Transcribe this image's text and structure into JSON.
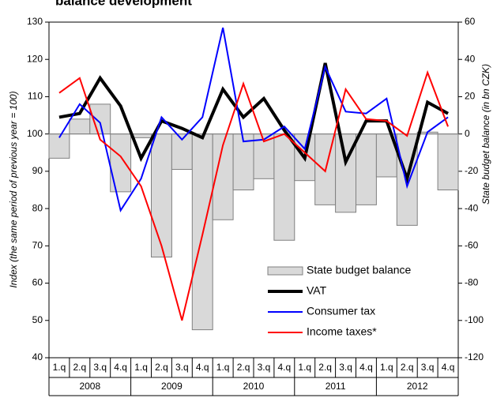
{
  "chart_data": {
    "type": "combo",
    "title": "balance development",
    "y_label": "Index (the same period of previous year = 100)",
    "y2_label": "State budget balance (in bn CZK)",
    "categories": [
      "1.q",
      "2.q",
      "3.q",
      "4.q",
      "1.q",
      "2.q",
      "3.q",
      "4.q",
      "1.q",
      "2.q",
      "3.q",
      "4.q",
      "1.q",
      "2.q",
      "3.q",
      "4.q",
      "1.q",
      "2.q",
      "3.q",
      "4.q"
    ],
    "years": [
      "2008",
      "2009",
      "2010",
      "2011",
      "2012"
    ],
    "ylim": [
      40,
      130
    ],
    "yticks": [
      40,
      50,
      60,
      70,
      80,
      90,
      100,
      110,
      120,
      130
    ],
    "y2lim": [
      -120,
      60
    ],
    "y2ticks": [
      -120,
      -100,
      -80,
      -60,
      -40,
      -20,
      0,
      20,
      40,
      60
    ],
    "series": [
      {
        "name": "State budget balance",
        "type": "bar",
        "axis": "y2",
        "color": "#d9d9d9",
        "values": [
          -13,
          8,
          16,
          -31,
          -2,
          -66,
          -19,
          -105,
          -46,
          -30,
          -24,
          -57,
          -25,
          -38,
          -42,
          -38,
          -23,
          -49,
          1,
          -30
        ]
      },
      {
        "name": "VAT",
        "type": "line",
        "color": "#000000",
        "values": [
          104.5,
          105.5,
          115,
          107.5,
          93.5,
          103.5,
          101.5,
          99,
          112,
          104.5,
          109.5,
          101,
          93.5,
          119,
          92.5,
          103.5,
          103.5,
          88,
          108.5,
          105.5
        ]
      },
      {
        "name": "Consumer tax",
        "type": "line",
        "color": "#0000ff",
        "values": [
          99,
          108,
          103,
          79.5,
          88,
          104.5,
          98.5,
          104.5,
          128.5,
          98,
          98.5,
          102,
          96,
          118,
          106,
          105.5,
          109.5,
          86,
          100.5,
          104.5
        ]
      },
      {
        "name": "Income taxes*",
        "type": "line",
        "color": "#ff0000",
        "values": [
          111,
          115,
          98.5,
          94,
          86,
          70,
          50,
          73,
          97,
          113.5,
          98,
          100,
          95,
          90,
          112,
          104,
          103.5,
          99.5,
          116.5,
          102
        ]
      }
    ]
  }
}
